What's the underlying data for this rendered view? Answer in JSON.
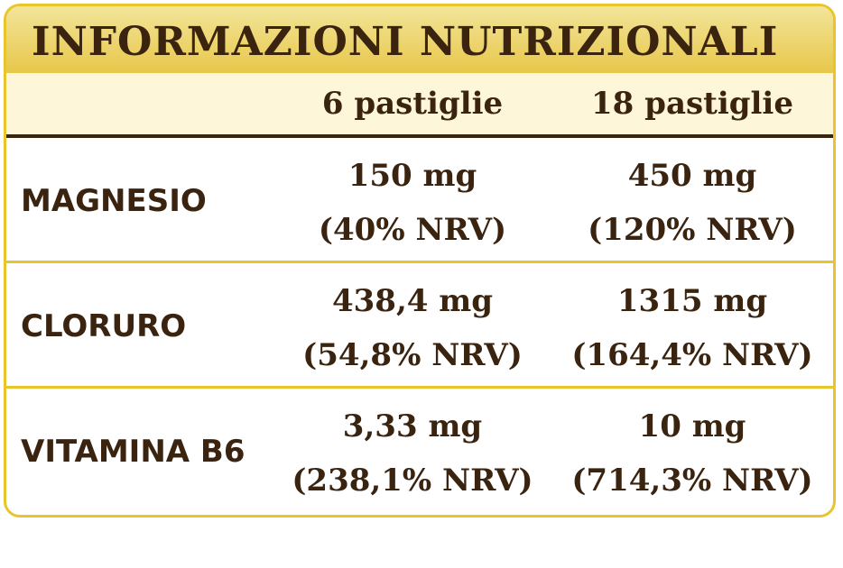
{
  "header": {
    "title": "INFORMAZIONI NUTRIZIONALI"
  },
  "table": {
    "columns": [
      "6 pastiglie",
      "18 pastiglie"
    ],
    "rows": [
      {
        "name": "MAGNESIO",
        "cells": [
          [
            "150 mg",
            "(40% NRV)"
          ],
          [
            "450 mg",
            "(120% NRV)"
          ]
        ]
      },
      {
        "name": "CLORURO",
        "cells": [
          [
            "438,4 mg",
            "(54,8% NRV)"
          ],
          [
            "1315 mg",
            "(164,4% NRV)"
          ]
        ]
      },
      {
        "name": "VITAMINA B6",
        "cells": [
          [
            "3,33 mg",
            "(238,1% NRV)"
          ],
          [
            "10 mg",
            "(714,3% NRV)"
          ]
        ]
      }
    ]
  }
}
